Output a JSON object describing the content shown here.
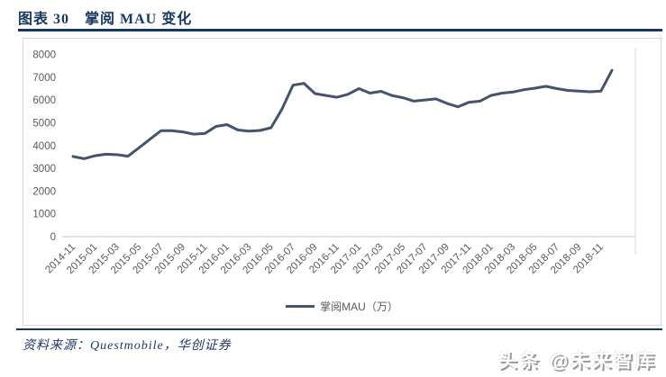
{
  "page": {
    "title": "图表 30　掌阅 MAU 变化",
    "source_label": "资料来源：Questmobile，华创证券",
    "watermark": "头条 @未来智库"
  },
  "colors": {
    "accent_navy": "#17375E",
    "line": "#44546A",
    "axis_text": "#595959",
    "axis_line": "#C8C8C8",
    "panel_border": "#D9D9D9"
  },
  "chart_data": {
    "type": "line",
    "title": "掌阅 MAU 变化",
    "legend_position": "bottom",
    "grid": false,
    "ylim": [
      0,
      8000
    ],
    "ytick_interval": 1000,
    "yticks": [
      0,
      1000,
      2000,
      3000,
      4000,
      5000,
      6000,
      7000,
      8000
    ],
    "xlabel": "",
    "ylabel": "",
    "x": [
      "2014-11",
      "2014-12",
      "2015-01",
      "2015-02",
      "2015-03",
      "2015-04",
      "2015-05",
      "2015-06",
      "2015-07",
      "2015-08",
      "2015-09",
      "2015-10",
      "2015-11",
      "2015-12",
      "2016-01",
      "2016-02",
      "2016-03",
      "2016-04",
      "2016-05",
      "2016-06",
      "2016-07",
      "2016-08",
      "2016-09",
      "2016-10",
      "2016-11",
      "2016-12",
      "2017-01",
      "2017-02",
      "2017-03",
      "2017-04",
      "2017-05",
      "2017-06",
      "2017-07",
      "2017-08",
      "2017-09",
      "2017-10",
      "2017-11",
      "2017-12",
      "2018-01",
      "2018-02",
      "2018-03",
      "2018-04",
      "2018-05",
      "2018-06",
      "2018-07",
      "2018-08",
      "2018-09",
      "2018-10",
      "2018-11",
      "2018-12"
    ],
    "xtick_labels": [
      "2014-11",
      "2015-01",
      "2015-03",
      "2015-05",
      "2015-07",
      "2015-09",
      "2015-11",
      "2016-01",
      "2016-03",
      "2016-05",
      "2016-07",
      "2016-09",
      "2016-11",
      "2017-01",
      "2017-03",
      "2017-05",
      "2017-07",
      "2017-09",
      "2017-11",
      "2018-01",
      "2018-03",
      "2018-05",
      "2018-07",
      "2018-09",
      "2018-11"
    ],
    "series": [
      {
        "name": "掌阅MAU（万）",
        "values": [
          3520,
          3420,
          3550,
          3620,
          3600,
          3530,
          3900,
          4280,
          4650,
          4650,
          4600,
          4500,
          4530,
          4840,
          4920,
          4680,
          4630,
          4660,
          4780,
          5600,
          6650,
          6730,
          6280,
          6200,
          6120,
          6250,
          6500,
          6300,
          6380,
          6200,
          6100,
          5950,
          6000,
          6050,
          5850,
          5700,
          5900,
          5950,
          6200,
          6300,
          6350,
          6450,
          6520,
          6600,
          6500,
          6420,
          6390,
          6360,
          6390,
          7300
        ]
      }
    ]
  }
}
